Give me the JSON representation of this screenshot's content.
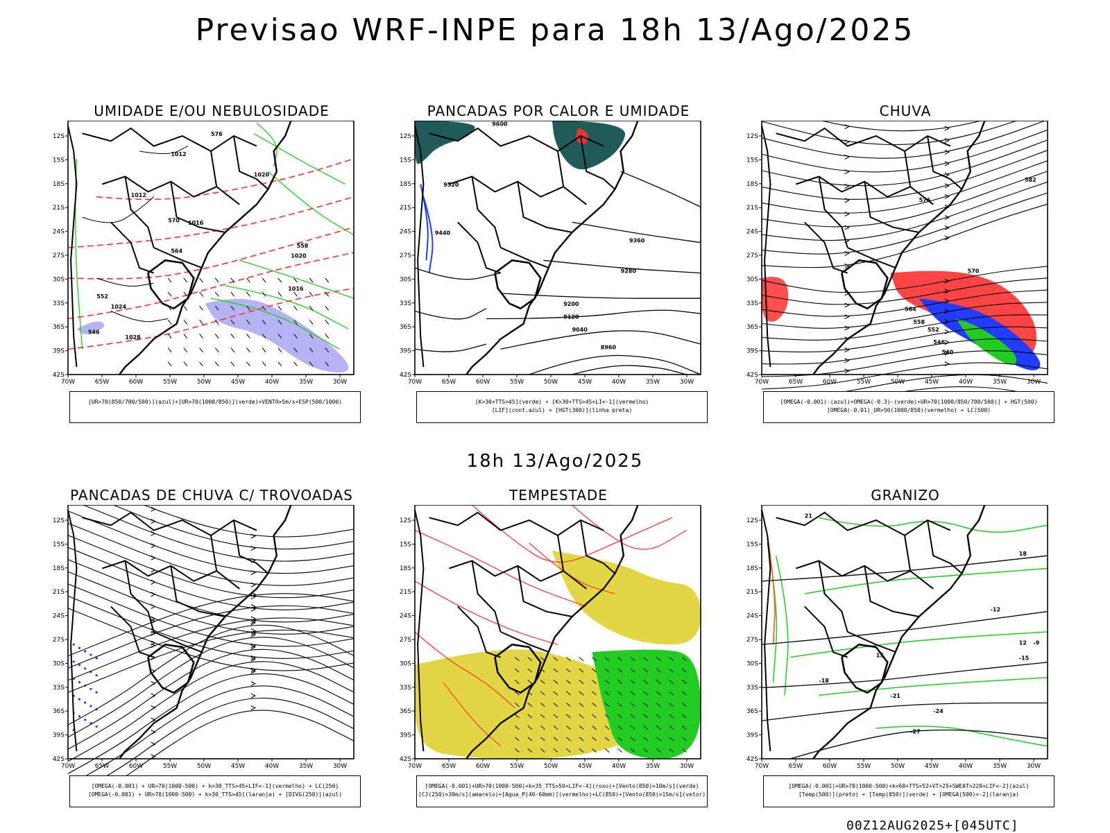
{
  "header": {
    "title": "Previsao WRF-INPE  para 18h 13/Ago/2025",
    "subtitle": "18h 13/Ago/2025",
    "footer": "00Z12AUG2025+[045UTC]"
  },
  "axes": {
    "lat_labels": [
      "12S",
      "15S",
      "18S",
      "21S",
      "24S",
      "27S",
      "30S",
      "33S",
      "36S",
      "39S",
      "42S"
    ],
    "lon_labels": [
      "70W",
      "65W",
      "60W",
      "55W",
      "50W",
      "45W",
      "40W",
      "35W",
      "30W"
    ]
  },
  "colors": {
    "red": "#ff3030",
    "green": "#22cc22",
    "blue": "#1f3cff",
    "lavender": "#a9a6f2",
    "teal": "#1f5b5b",
    "yellow": "#e0d43a",
    "orange": "#e07a2a"
  },
  "panels": [
    {
      "id": "umidade",
      "title": "UMIDADE E/OU NEBULOSIDADE",
      "legend": [
        "[UR>70(850/700/500)](azul)+[UR>70(1000/850)](verde)+VENTO>5m/s+ESP(500/1000)"
      ],
      "labels": [
        "1012",
        "1016",
        "1020",
        "1024",
        "1028",
        "1016",
        "1020",
        "1012",
        "570",
        "564",
        "558",
        "552",
        "546",
        "576"
      ]
    },
    {
      "id": "pancadas-calor",
      "title": "PANCADAS POR CALOR E UMIDADE",
      "legend": [
        "[K>30+TTS>45](verde) + [K>30+TTS>45+LI<-1](vermelho)",
        "[LIF](cont.azul) + [HGT(300)](linha preta)"
      ],
      "labels": [
        "9600",
        "9520",
        "9440",
        "9360",
        "9280",
        "9200",
        "9120",
        "9040",
        "8960"
      ]
    },
    {
      "id": "chuva",
      "title": "CHUVA",
      "legend": [
        "[OMEGA(-0.001)-(azul)+OMEGA(-0.3)-(verde)+UR>70(1000/850/700/500)] + HGT(500)",
        "[OMEGA(-0.01)_UR>50(1000/850)(vermelho) + LC(500)"
      ],
      "labels": [
        "582",
        "576",
        "570",
        "564",
        "558",
        "552",
        "546",
        "540"
      ]
    },
    {
      "id": "trovoadas",
      "title": "PANCADAS DE CHUVA C/ TROVOADAS",
      "legend": [
        "[OMEGA(-0.001) + UR>70(1000-500) + k>30_TTS>45+LIF<-1](vermelho) + LC(250)",
        "[OMEGA(-0.001) + UR>70(1000-500) + k>30_TTS>45](laranja) + [DIVG(250)](azul)"
      ],
      "labels": []
    },
    {
      "id": "tempestade",
      "title": "TEMPESTADE",
      "legend": [
        "[OMEGA(-0.001)+UR>70(1000-500)+k>35_TTS>50+LIF<-4](roxo)+[Vento(850)>10m/s](verde)",
        "[CJ(250)>30m/s](amarelo)+[Agua_P(40-60mm)](vermelho)+LC(850)+[Vento(850)>15m/s](vetor)"
      ],
      "labels": []
    },
    {
      "id": "granizo",
      "title": "GRANIZO",
      "legend": [
        "[OMEGA(-0.001)+UR>70(1000-500)+k<60+TTS>52+VT>25+SWEAT>220+LIF<-2](azul)",
        "[Temp(500)](preto) + [Temp(850)](verde) + [OMEGA(500)<-2](laranja)"
      ],
      "labels": [
        "-27",
        "-24",
        "-21",
        "-18",
        "-15",
        "-12",
        "21",
        "18",
        "15",
        "12",
        "-9"
      ]
    }
  ]
}
